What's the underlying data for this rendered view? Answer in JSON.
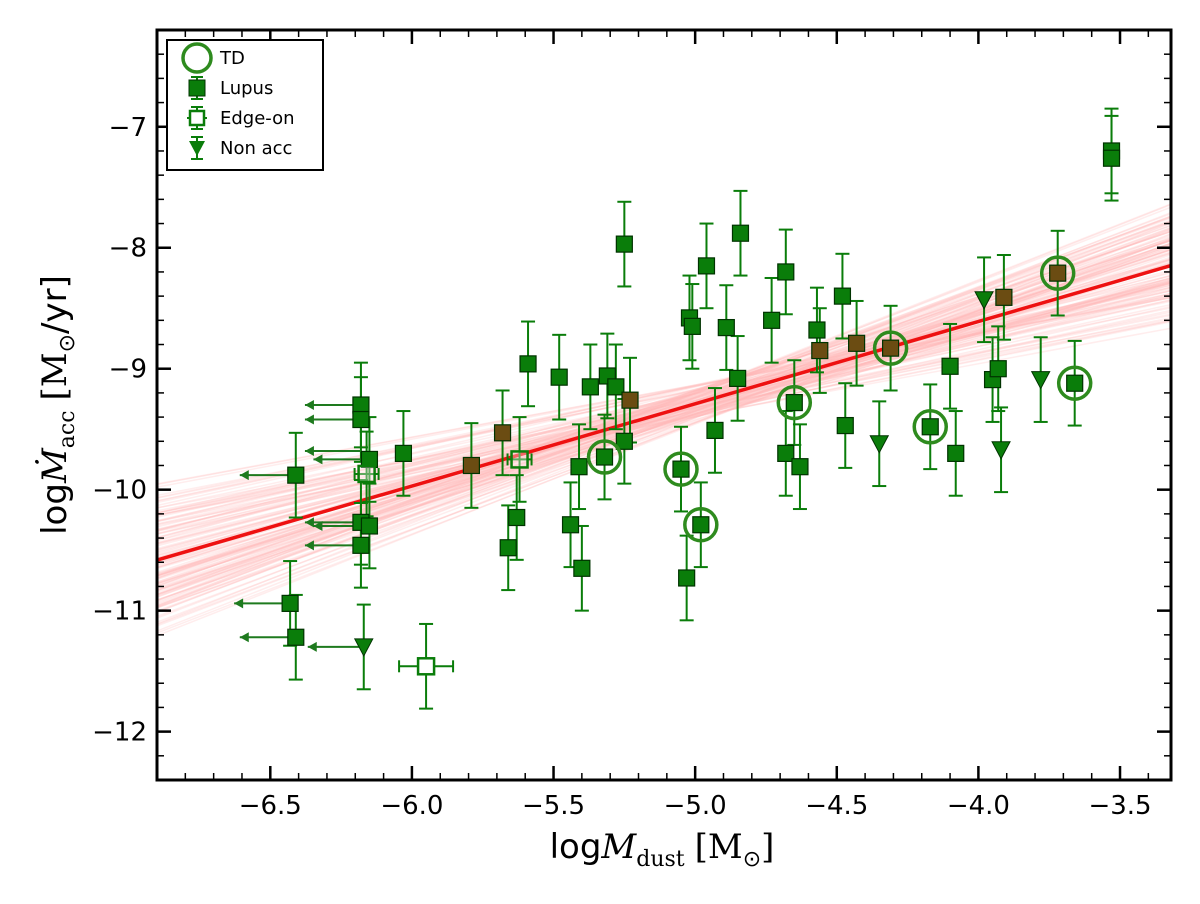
{
  "chart_data": {
    "type": "scatter",
    "title": "",
    "xlabel": {
      "main": "log",
      "math": "M",
      "sub": "dust",
      "unit": "[M",
      "unit_sub": "⊙",
      "unit_close": "]"
    },
    "ylabel": {
      "main": "log",
      "math": "Ṁ",
      "sub": "acc",
      "unit": "[M",
      "unit_sub": "⊙",
      "unit_close": "/yr]"
    },
    "xlim": [
      -6.9,
      -3.32
    ],
    "ylim": [
      -12.4,
      -6.2
    ],
    "x_ticks": [
      -6.5,
      -6.0,
      -5.5,
      -5.0,
      -4.5,
      -4.0,
      -3.5
    ],
    "x_tick_labels": [
      "−6.5",
      "−6.0",
      "−5.5",
      "−5.0",
      "−4.5",
      "−4.0",
      "−3.5"
    ],
    "y_ticks": [
      -12,
      -11,
      -10,
      -9,
      -8,
      -7
    ],
    "y_tick_labels": [
      "−12",
      "−11",
      "−10",
      "−9",
      "−8",
      "−7"
    ],
    "grid": false,
    "legend_position": "top-left",
    "colors": {
      "marker": "#0a7d0a",
      "marker_brown": "#6b4c12",
      "td_ring": "#2e8b1e",
      "fit": "#ee1111",
      "fit_bundle": "#ffb6b6",
      "upper_limit": "#1e7a1e"
    },
    "legend": [
      {
        "label": "TD",
        "symbol": "open-circle"
      },
      {
        "label": "Lupus",
        "symbol": "square-errorbar"
      },
      {
        "label": "Edge-on",
        "symbol": "open-square-errorbar"
      },
      {
        "label": "Non acc",
        "symbol": "triangle-down-errorbar"
      }
    ],
    "fit": {
      "slope": 0.68,
      "intercept": -5.89
    },
    "series": [
      {
        "name": "Lupus",
        "points": [
          {
            "x": -6.18,
            "y": -9.3
          },
          {
            "x": -6.18,
            "y": -9.42
          },
          {
            "x": -6.15,
            "y": -9.75
          },
          {
            "x": -6.03,
            "y": -9.7
          },
          {
            "x": -6.18,
            "y": -10.27
          },
          {
            "x": -6.15,
            "y": -10.3
          },
          {
            "x": -6.18,
            "y": -10.46
          },
          {
            "x": -5.79,
            "y": -9.8
          },
          {
            "x": -5.68,
            "y": -9.53
          },
          {
            "x": -5.66,
            "y": -10.48
          },
          {
            "x": -5.63,
            "y": -10.23
          },
          {
            "x": -5.59,
            "y": -8.96
          },
          {
            "x": -5.48,
            "y": -9.07
          },
          {
            "x": -5.44,
            "y": -10.29
          },
          {
            "x": -5.41,
            "y": -9.81
          },
          {
            "x": -5.4,
            "y": -10.65
          },
          {
            "x": -5.37,
            "y": -9.15
          },
          {
            "x": -5.31,
            "y": -9.06
          },
          {
            "x": -5.28,
            "y": -9.15
          },
          {
            "x": -5.25,
            "y": -9.6
          },
          {
            "x": -5.25,
            "y": -7.97
          },
          {
            "x": -5.23,
            "y": -9.26
          },
          {
            "x": -5.03,
            "y": -10.73
          },
          {
            "x": -5.02,
            "y": -8.58
          },
          {
            "x": -5.01,
            "y": -8.65
          },
          {
            "x": -4.96,
            "y": -8.15
          },
          {
            "x": -4.93,
            "y": -9.51
          },
          {
            "x": -4.89,
            "y": -8.66
          },
          {
            "x": -4.85,
            "y": -9.08
          },
          {
            "x": -4.84,
            "y": -7.88
          },
          {
            "x": -4.73,
            "y": -8.6
          },
          {
            "x": -4.68,
            "y": -8.2
          },
          {
            "x": -4.68,
            "y": -9.7
          },
          {
            "x": -4.63,
            "y": -9.81
          },
          {
            "x": -4.57,
            "y": -8.68
          },
          {
            "x": -4.56,
            "y": -8.85
          },
          {
            "x": -4.48,
            "y": -8.4
          },
          {
            "x": -4.47,
            "y": -9.47
          },
          {
            "x": -4.43,
            "y": -8.79
          },
          {
            "x": -4.1,
            "y": -8.98
          },
          {
            "x": -4.08,
            "y": -9.7
          },
          {
            "x": -3.95,
            "y": -9.09
          },
          {
            "x": -3.93,
            "y": -9.0
          },
          {
            "x": -3.91,
            "y": -8.41
          },
          {
            "x": -3.53,
            "y": -7.2
          },
          {
            "x": -3.53,
            "y": -7.26
          }
        ]
      },
      {
        "name": "TD",
        "points": [
          {
            "x": -5.32,
            "y": -9.73
          },
          {
            "x": -5.05,
            "y": -9.83
          },
          {
            "x": -4.98,
            "y": -10.29
          },
          {
            "x": -4.65,
            "y": -9.28
          },
          {
            "x": -4.31,
            "y": -8.83
          },
          {
            "x": -4.17,
            "y": -9.48
          },
          {
            "x": -3.72,
            "y": -8.21
          },
          {
            "x": -3.66,
            "y": -9.12
          }
        ]
      },
      {
        "name": "Non acc",
        "points": [
          {
            "x": -6.17,
            "y": -11.3
          },
          {
            "x": -4.35,
            "y": -9.62
          },
          {
            "x": -3.98,
            "y": -8.43
          },
          {
            "x": -3.92,
            "y": -9.67
          },
          {
            "x": -3.78,
            "y": -9.09
          }
        ]
      },
      {
        "name": "Edge-on",
        "points": [
          {
            "x": -5.95,
            "y": -11.46
          },
          {
            "x": -6.16,
            "y": -9.87
          },
          {
            "x": -5.62,
            "y": -9.75
          }
        ]
      },
      {
        "name": "upper limits",
        "points": [
          {
            "x": -6.43,
            "y": -10.94
          },
          {
            "x": -6.41,
            "y": -11.22
          },
          {
            "x": -6.41,
            "y": -9.88
          }
        ]
      }
    ]
  }
}
